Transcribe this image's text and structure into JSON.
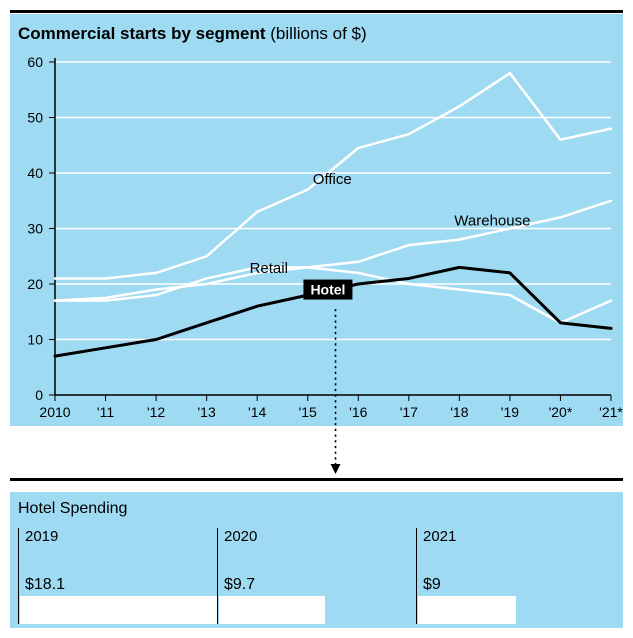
{
  "background_color": "#9edaf2",
  "rule_color": "#000000",
  "title": {
    "bold": "Commercial starts by segment",
    "light": " (billions of $)"
  },
  "chart": {
    "type": "line",
    "xlim": [
      2010,
      2021
    ],
    "ylim": [
      0,
      60
    ],
    "ytick_step": 10,
    "y_ticks": [
      0,
      10,
      20,
      30,
      40,
      50,
      60
    ],
    "x_tick_labels": [
      "2010",
      "'11",
      "'12",
      "'13",
      "'14",
      "'15",
      "'16",
      "'17",
      "'18",
      "'19",
      "'20*",
      "'21*"
    ],
    "grid_color": "#ffffff",
    "axis_color": "#000000",
    "tick_fontsize": 14,
    "series": {
      "office": {
        "label": "Office",
        "label_xy": [
          2015.1,
          38
        ],
        "color": "#ffffff",
        "width": 2.5,
        "data": [
          21,
          21,
          22,
          25,
          33,
          37,
          44.5,
          47,
          52,
          58,
          46,
          48
        ]
      },
      "warehouse": {
        "label": "Warehouse",
        "label_xy": [
          2017.9,
          30.5
        ],
        "color": "#ffffff",
        "width": 2.5,
        "data": [
          17,
          17,
          18,
          21,
          23,
          23,
          24,
          27,
          28,
          30,
          32,
          35
        ]
      },
      "retail": {
        "label": "Retail",
        "label_xy": [
          2013.85,
          22
        ],
        "color": "#ffffff",
        "width": 2.5,
        "data": [
          17,
          17.5,
          19,
          20,
          22,
          23,
          22,
          20,
          19,
          18,
          13,
          17
        ]
      },
      "hotel": {
        "label": "Hotel",
        "label_xy": [
          2015.4,
          19
        ],
        "label_bg": "#000000",
        "label_fg": "#ffffff",
        "color": "#000000",
        "width": 3,
        "data": [
          7,
          8.5,
          10,
          13,
          16,
          18,
          20,
          21,
          23,
          22,
          13,
          12
        ]
      }
    },
    "callout_dotted_x": 2015.55
  },
  "hotel_spending": {
    "title": "Hotel Spending",
    "max_value": 18.1,
    "bar_color": "#ffffff",
    "columns": [
      {
        "year": "2019",
        "value": 18.1,
        "display": "$18.1"
      },
      {
        "year": "2020",
        "value": 9.7,
        "display": "$9.7"
      },
      {
        "year": "2021",
        "value": 9.0,
        "display": "$9"
      }
    ]
  }
}
